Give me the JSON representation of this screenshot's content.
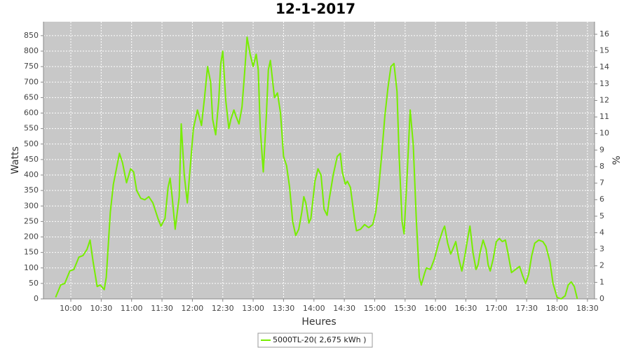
{
  "chart_data": {
    "type": "line",
    "title": "12-1-2017",
    "x_label": "Heures",
    "y_label": "Watts",
    "y2_label": "%",
    "xlim": [
      "09:33",
      "18:37"
    ],
    "xticks": [
      "10:00",
      "10:30",
      "11:00",
      "11:30",
      "12:00",
      "12:30",
      "13:00",
      "13:30",
      "14:00",
      "14:30",
      "15:00",
      "15:30",
      "16:00",
      "16:30",
      "17:00",
      "17:30",
      "18:00",
      "18:30"
    ],
    "ylim": [
      0,
      895
    ],
    "yticks": [
      0,
      50,
      100,
      150,
      200,
      250,
      300,
      350,
      400,
      450,
      500,
      550,
      600,
      650,
      700,
      750,
      800,
      850
    ],
    "y2lim": [
      0,
      16.76
    ],
    "y2ticks": [
      0,
      1,
      2,
      3,
      4,
      5,
      6,
      7,
      8,
      9,
      10,
      11,
      12,
      13,
      14,
      15,
      16
    ],
    "grid": true,
    "legend": "bottom",
    "x": [
      "09:45",
      "09:50",
      "09:54",
      "09:59",
      "10:03",
      "10:08",
      "10:12",
      "10:16",
      "10:19",
      "10:22",
      "10:26",
      "10:29",
      "10:33",
      "10:35",
      "10:39",
      "10:42",
      "10:45",
      "10:48",
      "10:51",
      "10:55",
      "10:59",
      "11:02",
      "11:05",
      "11:09",
      "11:13",
      "11:17",
      "11:21",
      "11:26",
      "11:29",
      "11:33",
      "11:36",
      "11:38",
      "11:40",
      "11:43",
      "11:47",
      "11:49",
      "11:52",
      "11:55",
      "11:58",
      "12:01",
      "12:05",
      "12:09",
      "12:12",
      "12:15",
      "12:18",
      "12:20",
      "12:23",
      "12:26",
      "12:28",
      "12:30",
      "12:33",
      "12:36",
      "12:38",
      "12:41",
      "12:43",
      "12:46",
      "12:49",
      "12:52",
      "12:54",
      "12:57",
      "13:00",
      "13:03",
      "13:05",
      "13:07",
      "13:10",
      "13:13",
      "13:15",
      "13:17",
      "13:21",
      "13:24",
      "13:27",
      "13:30",
      "13:33",
      "13:36",
      "13:39",
      "13:42",
      "13:45",
      "13:48",
      "13:50",
      "13:52",
      "13:55",
      "13:57",
      "14:01",
      "14:04",
      "14:07",
      "14:10",
      "14:13",
      "14:15",
      "14:19",
      "14:23",
      "14:26",
      "14:28",
      "14:31",
      "14:33",
      "14:36",
      "14:40",
      "14:42",
      "14:46",
      "14:50",
      "14:54",
      "14:58",
      "15:01",
      "15:04",
      "15:07",
      "15:10",
      "15:13",
      "15:16",
      "15:19",
      "15:22",
      "15:24",
      "15:27",
      "15:29",
      "15:32",
      "15:35",
      "15:38",
      "15:41",
      "15:44",
      "15:46",
      "15:49",
      "15:51",
      "15:55",
      "15:59",
      "16:03",
      "16:07",
      "16:09",
      "16:12",
      "16:15",
      "16:17",
      "16:20",
      "16:23",
      "16:26",
      "16:29",
      "16:32",
      "16:34",
      "16:37",
      "16:40",
      "16:42",
      "16:44",
      "16:47",
      "16:50",
      "16:52",
      "16:54",
      "16:57",
      "17:00",
      "17:03",
      "17:06",
      "17:09",
      "17:12",
      "17:15",
      "17:19",
      "17:23",
      "17:26",
      "17:29",
      "17:32",
      "17:35",
      "17:38",
      "17:42",
      "17:46",
      "17:49",
      "17:53",
      "17:56",
      "18:00",
      "18:04",
      "18:08",
      "18:11",
      "18:14",
      "18:17",
      "18:20"
    ],
    "series": [
      {
        "name": "5000TL-20( 2,675 kWh )",
        "color": "#77ee00",
        "values": [
          5,
          45,
          50,
          90,
          95,
          135,
          140,
          160,
          190,
          120,
          40,
          45,
          30,
          70,
          280,
          370,
          420,
          470,
          440,
          375,
          420,
          410,
          350,
          325,
          320,
          330,
          310,
          260,
          235,
          260,
          360,
          390,
          330,
          225,
          330,
          565,
          400,
          310,
          430,
          550,
          610,
          560,
          650,
          750,
          700,
          580,
          530,
          640,
          760,
          800,
          640,
          550,
          580,
          610,
          590,
          565,
          620,
          750,
          845,
          790,
          750,
          790,
          740,
          550,
          410,
          590,
          740,
          770,
          650,
          665,
          600,
          460,
          430,
          360,
          250,
          205,
          225,
          280,
          330,
          310,
          245,
          260,
          380,
          420,
          400,
          290,
          270,
          320,
          400,
          460,
          470,
          410,
          370,
          380,
          360,
          260,
          220,
          225,
          240,
          230,
          240,
          280,
          360,
          470,
          590,
          680,
          750,
          760,
          670,
          470,
          250,
          210,
          400,
          610,
          500,
          260,
          70,
          45,
          80,
          100,
          95,
          130,
          180,
          220,
          235,
          180,
          145,
          160,
          185,
          130,
          90,
          140,
          200,
          235,
          150,
          95,
          110,
          150,
          190,
          160,
          110,
          90,
          130,
          185,
          195,
          185,
          190,
          140,
          85,
          95,
          105,
          75,
          50,
          80,
          140,
          180,
          190,
          185,
          170,
          120,
          50,
          5,
          0,
          10,
          45,
          55,
          40,
          0
        ]
      }
    ]
  }
}
